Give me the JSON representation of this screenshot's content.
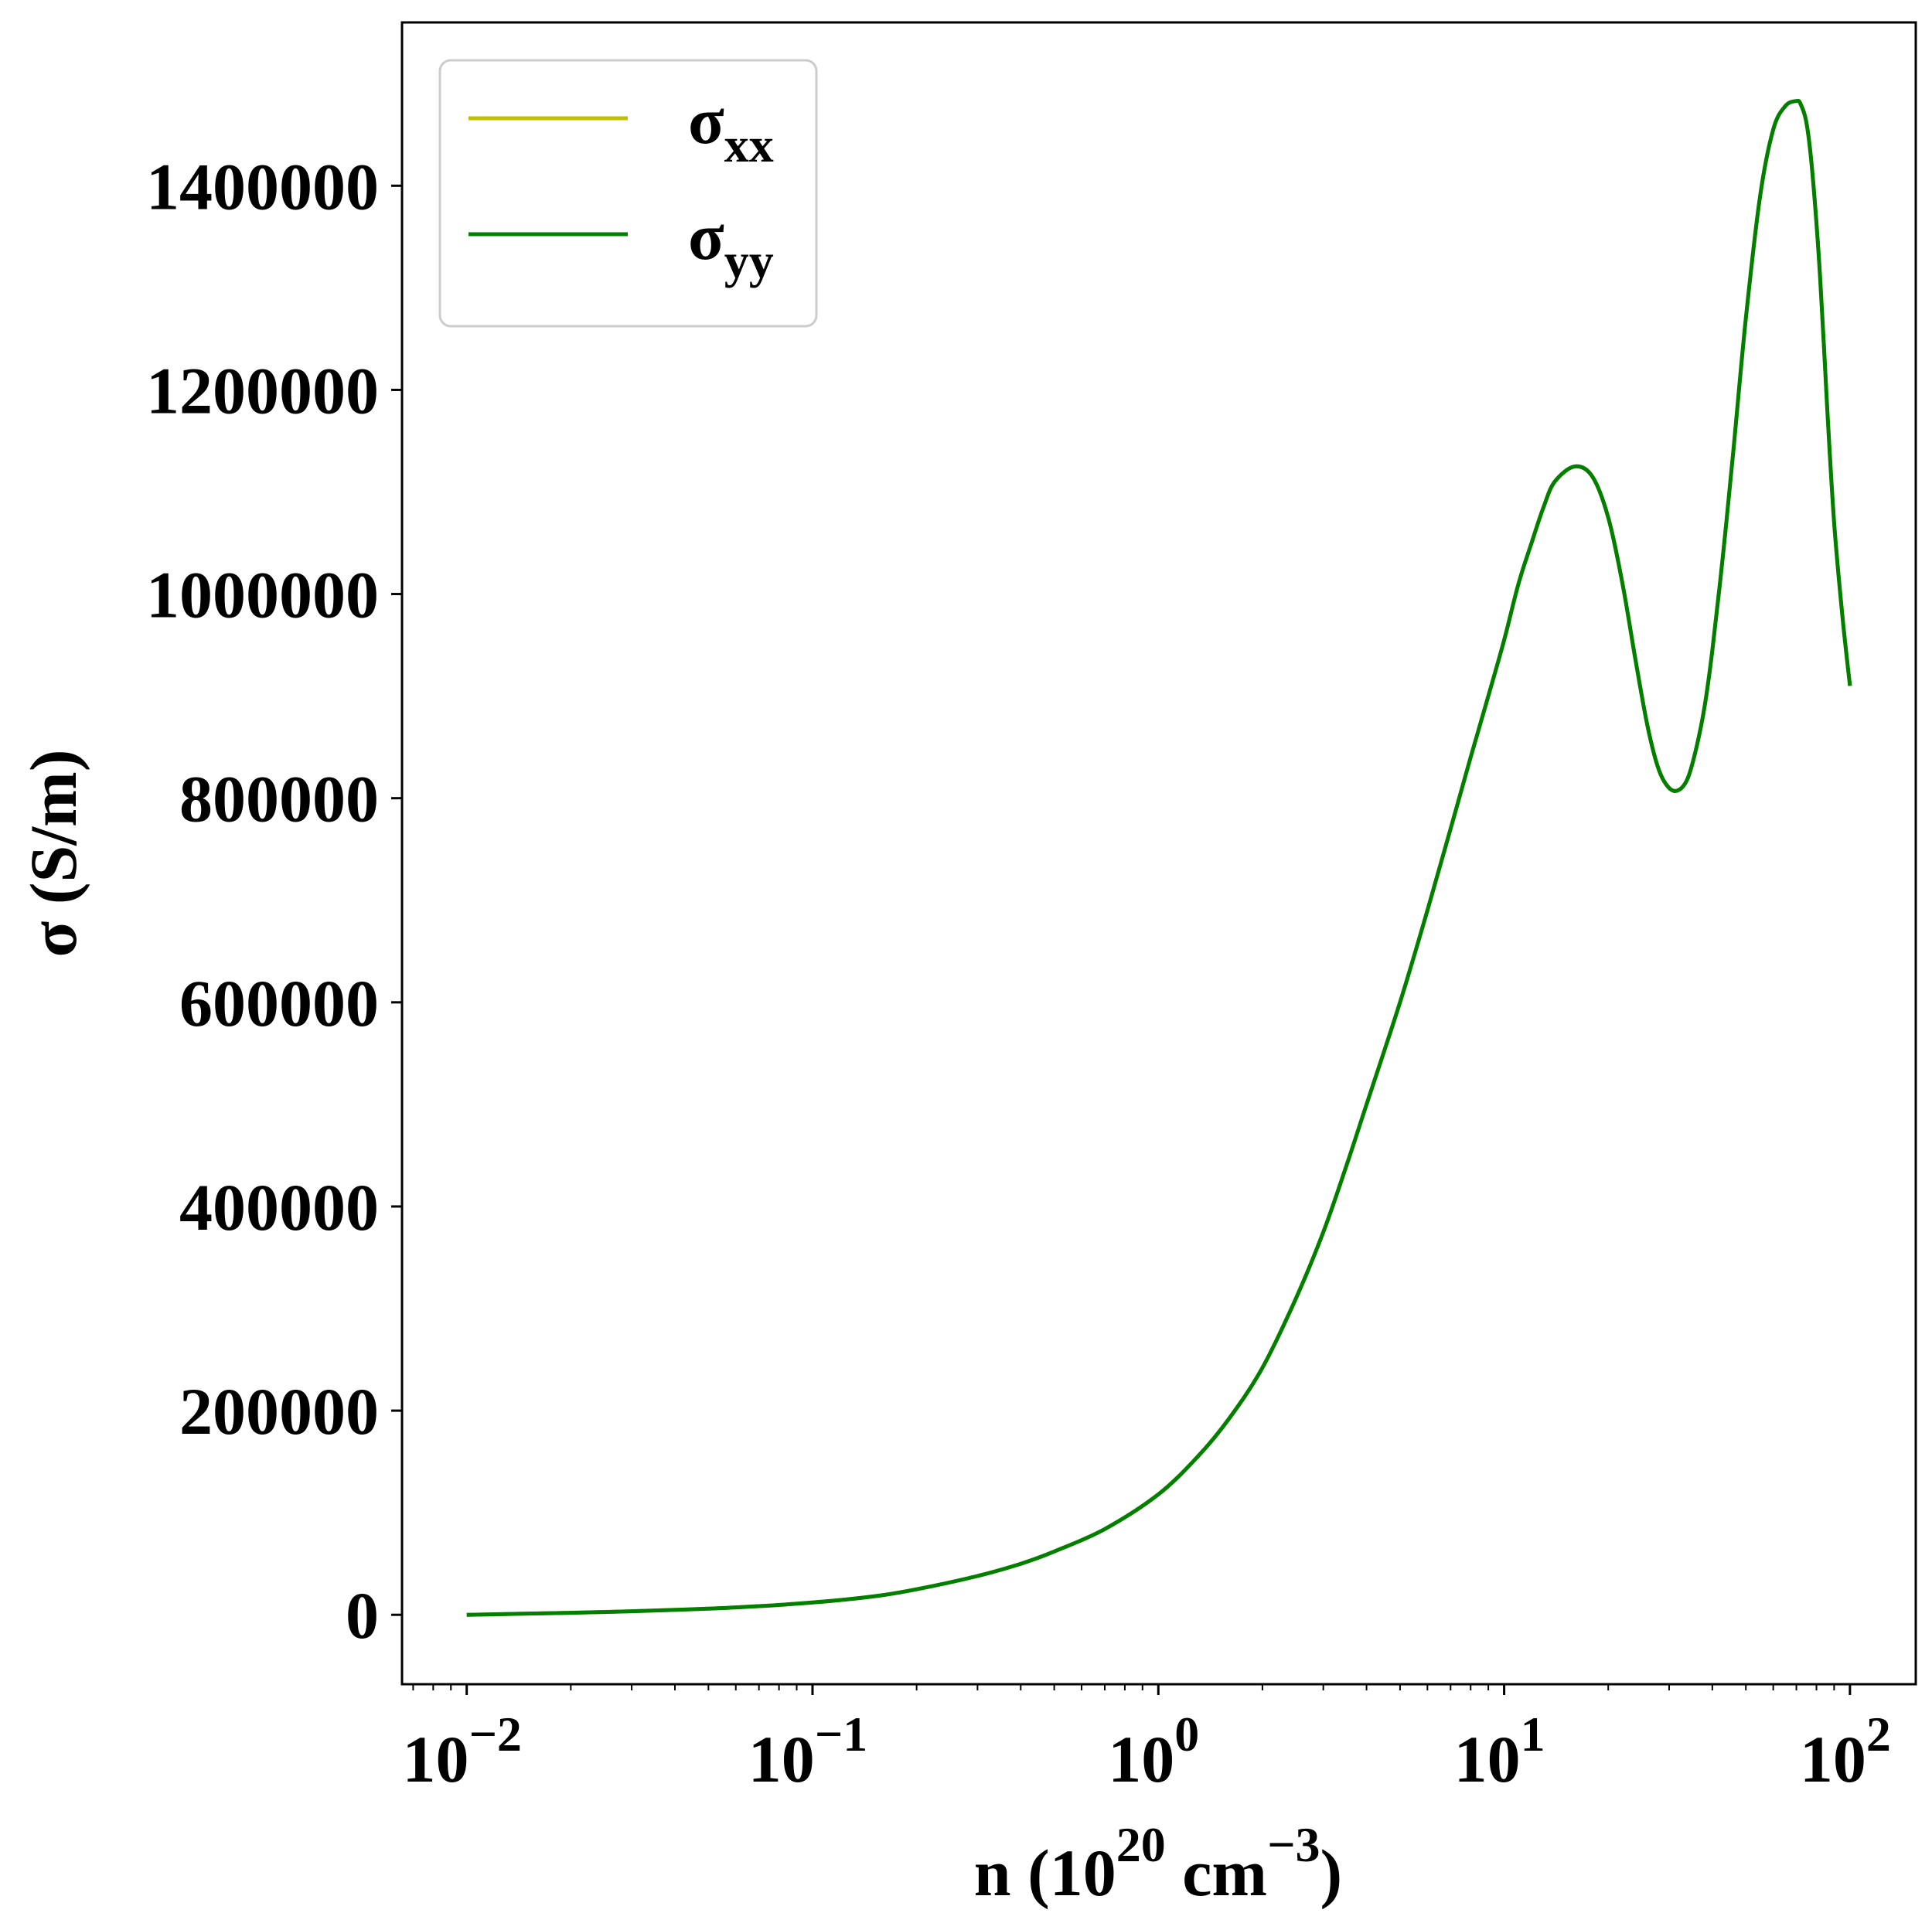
{
  "chart_data": {
    "type": "line",
    "title": "",
    "xlabel": {
      "base": "n (10",
      "exp1": "20",
      "mid": " cm",
      "exp2": "−3",
      "end": ")"
    },
    "ylabel": "σ (S/m)",
    "xscale": "log",
    "xlim": [
      0.0065,
      155
    ],
    "ylim": [
      -68000,
      1560000
    ],
    "grid": false,
    "legend_position": "top-left",
    "x_ticks": [
      {
        "base": "10",
        "exp": "−2",
        "value": 0.01
      },
      {
        "base": "10",
        "exp": "−1",
        "value": 0.1
      },
      {
        "base": "10",
        "exp": "0",
        "value": 1
      },
      {
        "base": "10",
        "exp": "1",
        "value": 10
      },
      {
        "base": "10",
        "exp": "2",
        "value": 100
      }
    ],
    "y_ticks": [
      {
        "label": "0",
        "value": 0
      },
      {
        "label": "200000",
        "value": 200000
      },
      {
        "label": "400000",
        "value": 400000
      },
      {
        "label": "600000",
        "value": 600000
      },
      {
        "label": "800000",
        "value": 800000
      },
      {
        "label": "1000000",
        "value": 1000000
      },
      {
        "label": "1200000",
        "value": 1200000
      },
      {
        "label": "1400000",
        "value": 1400000
      }
    ],
    "series": [
      {
        "name": "σ",
        "subscript": "xx",
        "color": "#bfbf00",
        "x": [
          0.01,
          0.02,
          0.03,
          0.05,
          0.07,
          0.1,
          0.15,
          0.2,
          0.3,
          0.4,
          0.5,
          0.7,
          1.0,
          1.3,
          1.6,
          2.0,
          2.5,
          3.0,
          3.5,
          4.0,
          5.0,
          6.0,
          7.0,
          8.0,
          9.0,
          10.0,
          11.0,
          12.0,
          13.0,
          14.0,
          16.0,
          18.0,
          20.0,
          22.0,
          24.0,
          26.0,
          28.0,
          30.0,
          32.0,
          34.0,
          36.0,
          38.0,
          40.0,
          43.0,
          46.0,
          50.0,
          55.0,
          60.0,
          65.0,
          70.0,
          72.0,
          75.0,
          78.0,
          82.0,
          86.0,
          90.0,
          95.0,
          100.0
        ],
        "values": [
          0,
          2000,
          3500,
          6000,
          8500,
          12000,
          18000,
          25000,
          38000,
          50000,
          62000,
          84000,
          118000,
          155000,
          192000,
          242000,
          310000,
          375000,
          440000,
          500000,
          600000,
          690000,
          770000,
          840000,
          900000,
          955000,
          1010000,
          1050000,
          1085000,
          1110000,
          1125000,
          1115000,
          1075000,
          1010000,
          935000,
          870000,
          828000,
          810000,
          808000,
          820000,
          850000,
          890000,
          945000,
          1040000,
          1140000,
          1270000,
          1390000,
          1455000,
          1478000,
          1483000,
          1480000,
          1460000,
          1410000,
          1310000,
          1180000,
          1070000,
          980000,
          910000
        ]
      },
      {
        "name": "σ",
        "subscript": "yy",
        "color": "#007f00",
        "x": [
          0.01,
          0.02,
          0.03,
          0.05,
          0.07,
          0.1,
          0.15,
          0.2,
          0.3,
          0.4,
          0.5,
          0.7,
          1.0,
          1.3,
          1.6,
          2.0,
          2.5,
          3.0,
          3.5,
          4.0,
          5.0,
          6.0,
          7.0,
          8.0,
          9.0,
          10.0,
          11.0,
          12.0,
          13.0,
          14.0,
          16.0,
          18.0,
          20.0,
          22.0,
          24.0,
          26.0,
          28.0,
          30.0,
          32.0,
          34.0,
          36.0,
          38.0,
          40.0,
          43.0,
          46.0,
          50.0,
          55.0,
          60.0,
          65.0,
          70.0,
          72.0,
          75.0,
          78.0,
          82.0,
          86.0,
          90.0,
          95.0,
          100.0
        ],
        "values": [
          0,
          2000,
          3500,
          6000,
          8500,
          12000,
          18000,
          25000,
          38000,
          50000,
          62000,
          84000,
          118000,
          155000,
          192000,
          242000,
          310000,
          375000,
          440000,
          500000,
          600000,
          690000,
          770000,
          840000,
          900000,
          955000,
          1010000,
          1050000,
          1085000,
          1110000,
          1125000,
          1115000,
          1075000,
          1010000,
          935000,
          870000,
          828000,
          810000,
          808000,
          820000,
          850000,
          890000,
          945000,
          1040000,
          1140000,
          1270000,
          1390000,
          1455000,
          1478000,
          1483000,
          1480000,
          1460000,
          1410000,
          1310000,
          1180000,
          1070000,
          980000,
          910000
        ]
      }
    ]
  }
}
